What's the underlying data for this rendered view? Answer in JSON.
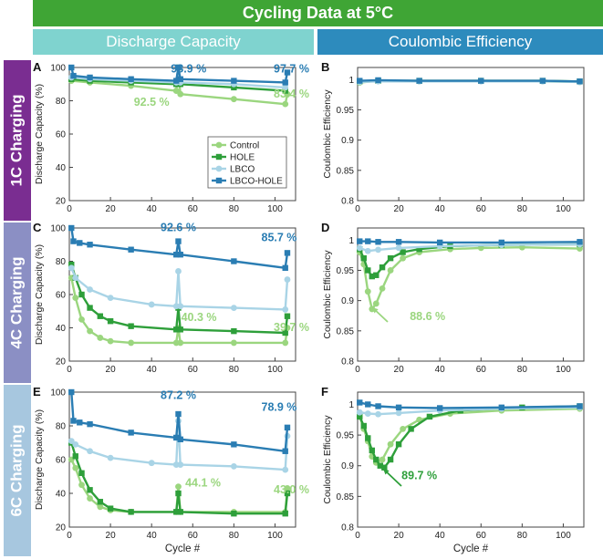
{
  "title": "Cycling Data at 5°C",
  "column_headers": {
    "discharge": "Discharge Capacity",
    "coulombic": "Coulombic Efficiency"
  },
  "row_labels": [
    "1C Charging",
    "4C Charging",
    "6C Charging"
  ],
  "colors": {
    "banner": "#3fa535",
    "discharge_header": "#7fd3cf",
    "coulombic_header": "#2d8bbd",
    "row1": "#7a2d91",
    "row2": "#8b8fc4",
    "row3": "#a7c7df"
  },
  "legend": [
    {
      "name": "Control",
      "color": "#9bd67f"
    },
    {
      "name": "HOLE",
      "color": "#2e9f3a"
    },
    {
      "name": "LBCO",
      "color": "#a9d4e6"
    },
    {
      "name": "LBCO-HOLE",
      "color": "#2a7db3"
    }
  ],
  "chart_data": [
    {
      "type": "line",
      "panel": "A",
      "xlabel": "",
      "ylabel": "Discharge Capacity (%)",
      "xlim": [
        0,
        110
      ],
      "ylim": [
        20,
        100
      ],
      "xticks": [
        0,
        20,
        40,
        60,
        80,
        100
      ],
      "yticks": [
        20,
        40,
        60,
        80,
        100
      ],
      "show_xticklabels": true,
      "series": [
        {
          "name": "Control",
          "x": [
            1,
            10,
            30,
            52,
            53,
            54,
            80,
            105,
            106
          ],
          "y": [
            92,
            91,
            89,
            86,
            100,
            84,
            81,
            78,
            84
          ]
        },
        {
          "name": "HOLE",
          "x": [
            1,
            10,
            30,
            52,
            53,
            54,
            80,
            105
          ],
          "y": [
            93,
            92,
            91,
            90,
            100,
            90,
            88,
            86
          ]
        },
        {
          "name": "LBCO",
          "x": [
            1,
            10,
            30,
            52,
            53,
            54,
            80,
            105
          ],
          "y": [
            94,
            93,
            92,
            91,
            100,
            91,
            90,
            88
          ]
        },
        {
          "name": "LBCO-HOLE",
          "x": [
            1,
            2,
            10,
            30,
            52,
            53,
            54,
            80,
            105,
            106
          ],
          "y": [
            100,
            95,
            94,
            93,
            92,
            100,
            93,
            92,
            91,
            97
          ]
        }
      ],
      "annotations": [
        {
          "text": "98.9 %",
          "x": 58,
          "y": 97,
          "color": "#2a7db3"
        },
        {
          "text": "97.7 %",
          "x": 108,
          "y": 97,
          "color": "#2a7db3"
        },
        {
          "text": "92.5 %",
          "x": 40,
          "y": 77,
          "color": "#9bd67f"
        },
        {
          "text": "83.4 %",
          "x": 108,
          "y": 82,
          "color": "#9bd67f"
        }
      ]
    },
    {
      "type": "line",
      "panel": "B",
      "xlabel": "",
      "ylabel": "Coulombic Efficiency",
      "xlim": [
        0,
        110
      ],
      "ylim": [
        0.8,
        1.02
      ],
      "xticks": [
        0,
        20,
        40,
        60,
        80,
        100
      ],
      "yticks": [
        0.8,
        0.85,
        0.9,
        0.95,
        1
      ],
      "show_xticklabels": true,
      "series": [
        {
          "name": "Control",
          "x": [
            1,
            10,
            30,
            60,
            90,
            108
          ],
          "y": [
            0.995,
            0.998,
            0.997,
            0.998,
            0.997,
            0.996
          ]
        },
        {
          "name": "HOLE",
          "x": [
            1,
            10,
            30,
            60,
            90,
            108
          ],
          "y": [
            0.997,
            0.998,
            0.998,
            0.998,
            0.998,
            0.997
          ]
        },
        {
          "name": "LBCO",
          "x": [
            1,
            10,
            30,
            60,
            90,
            108
          ],
          "y": [
            0.996,
            0.997,
            0.997,
            0.997,
            0.997,
            0.996
          ]
        },
        {
          "name": "LBCO-HOLE",
          "x": [
            1,
            10,
            30,
            60,
            90,
            108
          ],
          "y": [
            0.998,
            0.999,
            0.998,
            0.998,
            0.998,
            0.997
          ]
        }
      ],
      "annotations": []
    },
    {
      "type": "line",
      "panel": "C",
      "xlabel": "",
      "ylabel": "Discharge Capacity (%)",
      "xlim": [
        0,
        110
      ],
      "ylim": [
        20,
        100
      ],
      "xticks": [
        0,
        20,
        40,
        60,
        80,
        100
      ],
      "yticks": [
        20,
        40,
        60,
        80,
        100
      ],
      "show_xticklabels": true,
      "series": [
        {
          "name": "Control",
          "x": [
            1,
            3,
            6,
            10,
            15,
            20,
            30,
            52,
            53,
            54,
            80,
            105,
            106
          ],
          "y": [
            70,
            58,
            45,
            38,
            34,
            32,
            31,
            31,
            40,
            31,
            31,
            31,
            40
          ]
        },
        {
          "name": "HOLE",
          "x": [
            1,
            3,
            6,
            10,
            15,
            20,
            30,
            52,
            53,
            54,
            80,
            105,
            106
          ],
          "y": [
            78,
            70,
            60,
            52,
            47,
            44,
            41,
            39,
            52,
            39,
            38,
            37,
            47
          ]
        },
        {
          "name": "LBCO",
          "x": [
            1,
            3,
            10,
            20,
            40,
            52,
            53,
            54,
            80,
            105,
            106
          ],
          "y": [
            76,
            70,
            63,
            58,
            54,
            53,
            74,
            53,
            52,
            51,
            69
          ]
        },
        {
          "name": "LBCO-HOLE",
          "x": [
            1,
            2,
            5,
            10,
            30,
            52,
            53,
            54,
            80,
            105,
            106
          ],
          "y": [
            100,
            92,
            91,
            90,
            87,
            84,
            92,
            84,
            80,
            76,
            85
          ]
        }
      ],
      "annotations": [
        {
          "text": "92.6 %",
          "x": 53,
          "y": 98,
          "color": "#2a7db3"
        },
        {
          "text": "85.7 %",
          "x": 102,
          "y": 92,
          "color": "#2a7db3"
        },
        {
          "text": "40.3 %",
          "x": 63,
          "y": 44,
          "color": "#9bd67f"
        },
        {
          "text": "39.7 %",
          "x": 108,
          "y": 38,
          "color": "#9bd67f"
        }
      ]
    },
    {
      "type": "line",
      "panel": "D",
      "xlabel": "",
      "ylabel": "Coulombic Efficiency",
      "xlim": [
        0,
        110
      ],
      "ylim": [
        0.8,
        1.02
      ],
      "xticks": [
        0,
        20,
        40,
        60,
        80,
        100
      ],
      "yticks": [
        0.8,
        0.85,
        0.9,
        0.95,
        1
      ],
      "show_xticklabels": true,
      "series": [
        {
          "name": "Control",
          "x": [
            1,
            3,
            5,
            7,
            9,
            12,
            16,
            22,
            30,
            45,
            60,
            80,
            108
          ],
          "y": [
            0.98,
            0.96,
            0.915,
            0.886,
            0.895,
            0.92,
            0.95,
            0.97,
            0.98,
            0.985,
            0.987,
            0.988,
            0.986
          ]
        },
        {
          "name": "HOLE",
          "x": [
            1,
            3,
            5,
            7,
            9,
            12,
            16,
            22,
            30,
            45,
            70,
            108
          ],
          "y": [
            0.985,
            0.97,
            0.95,
            0.94,
            0.942,
            0.955,
            0.97,
            0.98,
            0.985,
            0.99,
            0.992,
            0.993
          ]
        },
        {
          "name": "LBCO",
          "x": [
            1,
            5,
            10,
            20,
            40,
            70,
            108
          ],
          "y": [
            0.987,
            0.982,
            0.984,
            0.987,
            0.99,
            0.992,
            0.993
          ]
        },
        {
          "name": "LBCO-HOLE",
          "x": [
            1,
            5,
            10,
            20,
            40,
            70,
            108
          ],
          "y": [
            0.998,
            0.998,
            0.997,
            0.997,
            0.996,
            0.996,
            0.997
          ]
        }
      ],
      "annotations": [
        {
          "text": "88.6 %",
          "x": 34,
          "y": 0.868,
          "color": "#9bd67f"
        }
      ]
    },
    {
      "type": "line",
      "panel": "E",
      "xlabel": "Cycle #",
      "ylabel": "Discharge Capacity (%)",
      "xlim": [
        0,
        110
      ],
      "ylim": [
        20,
        100
      ],
      "xticks": [
        0,
        20,
        40,
        60,
        80,
        100
      ],
      "yticks": [
        20,
        40,
        60,
        80,
        100
      ],
      "show_xticklabels": true,
      "series": [
        {
          "name": "Control",
          "x": [
            1,
            3,
            6,
            10,
            15,
            20,
            30,
            52,
            53,
            54,
            80,
            105,
            106
          ],
          "y": [
            60,
            55,
            45,
            37,
            32,
            30,
            29,
            29,
            44,
            29,
            29,
            29,
            43
          ]
        },
        {
          "name": "HOLE",
          "x": [
            1,
            3,
            6,
            10,
            15,
            20,
            30,
            52,
            53,
            54,
            80,
            105,
            106
          ],
          "y": [
            70,
            62,
            52,
            42,
            35,
            31,
            29,
            29,
            40,
            29,
            28,
            28,
            40
          ]
        },
        {
          "name": "LBCO",
          "x": [
            1,
            3,
            10,
            20,
            40,
            52,
            53,
            54,
            80,
            105,
            106
          ],
          "y": [
            71,
            69,
            65,
            61,
            58,
            57,
            83,
            57,
            56,
            54,
            74
          ]
        },
        {
          "name": "LBCO-HOLE",
          "x": [
            1,
            2,
            5,
            10,
            30,
            52,
            53,
            54,
            80,
            105,
            106
          ],
          "y": [
            100,
            83,
            82,
            81,
            76,
            73,
            87,
            72,
            69,
            65,
            79
          ]
        }
      ],
      "annotations": [
        {
          "text": "87.2 %",
          "x": 53,
          "y": 96,
          "color": "#2a7db3"
        },
        {
          "text": "78.9 %",
          "x": 102,
          "y": 89,
          "color": "#2a7db3"
        },
        {
          "text": "44.1 %",
          "x": 65,
          "y": 44,
          "color": "#9bd67f"
        },
        {
          "text": "43.0 %",
          "x": 108,
          "y": 40,
          "color": "#9bd67f"
        }
      ]
    },
    {
      "type": "line",
      "panel": "F",
      "xlabel": "Cycle #",
      "ylabel": "Coulombic Efficiency",
      "xlim": [
        0,
        110
      ],
      "ylim": [
        0.8,
        1.02
      ],
      "xticks": [
        0,
        20,
        40,
        60,
        80,
        100
      ],
      "yticks": [
        0.8,
        0.85,
        0.9,
        0.95,
        1
      ],
      "show_xticklabels": true,
      "series": [
        {
          "name": "Control",
          "x": [
            1,
            3,
            5,
            7,
            9,
            12,
            16,
            22,
            30,
            45,
            70,
            108
          ],
          "y": [
            0.98,
            0.96,
            0.94,
            0.915,
            0.905,
            0.91,
            0.935,
            0.96,
            0.975,
            0.985,
            0.99,
            0.993
          ]
        },
        {
          "name": "HOLE",
          "x": [
            1,
            3,
            5,
            7,
            9,
            11,
            13,
            16,
            20,
            26,
            35,
            50,
            80,
            108
          ],
          "y": [
            0.98,
            0.965,
            0.945,
            0.925,
            0.91,
            0.9,
            0.897,
            0.91,
            0.935,
            0.96,
            0.98,
            0.99,
            0.995,
            0.997
          ]
        },
        {
          "name": "LBCO",
          "x": [
            1,
            5,
            10,
            20,
            40,
            70,
            108
          ],
          "y": [
            0.987,
            0.985,
            0.984,
            0.986,
            0.99,
            0.993,
            0.995
          ]
        },
        {
          "name": "LBCO-HOLE",
          "x": [
            1,
            5,
            10,
            20,
            40,
            70,
            108
          ],
          "y": [
            1.003,
            1.0,
            0.997,
            0.995,
            0.994,
            0.995,
            0.997
          ]
        }
      ],
      "annotations": [
        {
          "text": "89.7 %",
          "x": 30,
          "y": 0.878,
          "color": "#2e9f3a"
        }
      ]
    }
  ]
}
